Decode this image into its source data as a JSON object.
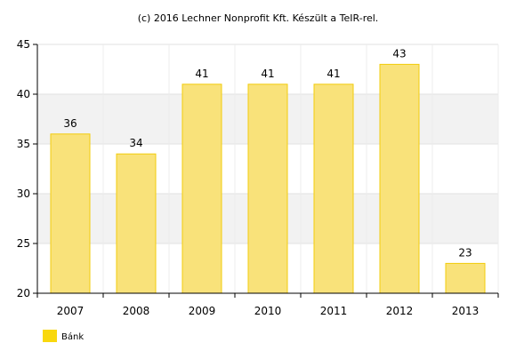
{
  "chart_data": {
    "type": "bar",
    "title": "(c) 2016 Lechner Nonprofit Kft. Készült a TeIR-rel.",
    "xlabel": "",
    "ylabel": "",
    "categories": [
      "2007",
      "2008",
      "2009",
      "2010",
      "2011",
      "2012",
      "2013"
    ],
    "series": [
      {
        "name": "Bánk",
        "values": [
          36,
          34,
          41,
          41,
          41,
          43,
          23
        ],
        "color": "#f9e27a",
        "stroke": "#f2cc0c"
      }
    ],
    "ylim": [
      20,
      45
    ],
    "yticks": [
      "20",
      "25",
      "30",
      "35",
      "40",
      "45"
    ],
    "grid": true,
    "legend": "bottom-left",
    "band_colors": [
      "#ffffff",
      "#f2f2f2"
    ],
    "legend_swatch_color": "#f9d80e"
  }
}
